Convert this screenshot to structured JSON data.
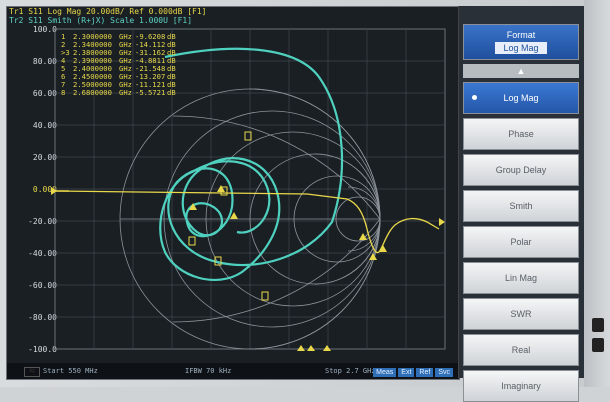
{
  "header": {
    "trace1": "Tr1 S11 Log Mag 20.00dB/ Ref 0.000dB [F1]",
    "trace2": "Tr2 S11 Smith (R+jX) Scale 1.000U [F1]"
  },
  "y_axis": {
    "ticks": [
      "100.0",
      "80.00",
      "60.00",
      "40.00",
      "20.00",
      "0.000",
      "-20.00",
      "-40.00",
      "-60.00",
      "-80.00",
      "-100.0"
    ]
  },
  "markers": [
    {
      "id": "1",
      "freq": "2.3000000",
      "unit": "GHz",
      "value": "-9.6208",
      "vunit": "dB"
    },
    {
      "id": "2",
      "freq": "2.3400000",
      "unit": "GHz",
      "value": "-14.112",
      "vunit": "dB"
    },
    {
      "id": ">3",
      "freq": "2.3800000",
      "unit": "GHz",
      "value": "-31.162",
      "vunit": "dB"
    },
    {
      "id": "4",
      "freq": "2.3900000",
      "unit": "GHz",
      "value": "-4.8811",
      "vunit": "dB"
    },
    {
      "id": "5",
      "freq": "2.4000000",
      "unit": "GHz",
      "value": "-21.548",
      "vunit": "dB"
    },
    {
      "id": "6",
      "freq": "2.4500000",
      "unit": "GHz",
      "value": "-13.207",
      "vunit": "dB"
    },
    {
      "id": "7",
      "freq": "2.5000000",
      "unit": "GHz",
      "value": "-11.121",
      "vunit": "dB"
    },
    {
      "id": "8",
      "freq": "2.6800000",
      "unit": "GHz",
      "value": "-5.5721",
      "vunit": "dB"
    }
  ],
  "footer": {
    "start": "Start 550 MHz",
    "ifbw": "IFBW 70 kHz",
    "stop": "Stop 2.7 GHz",
    "status": [
      "Meas",
      "Ext",
      "Ref",
      "Svc"
    ]
  },
  "softkeys": {
    "title": "Format",
    "title_value": "Log Mag",
    "up_arrow": "▲",
    "items": [
      "Log Mag",
      "Phase",
      "Group Delay",
      "Smith",
      "Polar",
      "Lin Mag",
      "SWR",
      "Real",
      "Imaginary"
    ],
    "selected": 0
  },
  "colors": {
    "trace1": "#e8d84a",
    "trace2": "#4fd1bf",
    "accent": "#2e6fb8"
  }
}
